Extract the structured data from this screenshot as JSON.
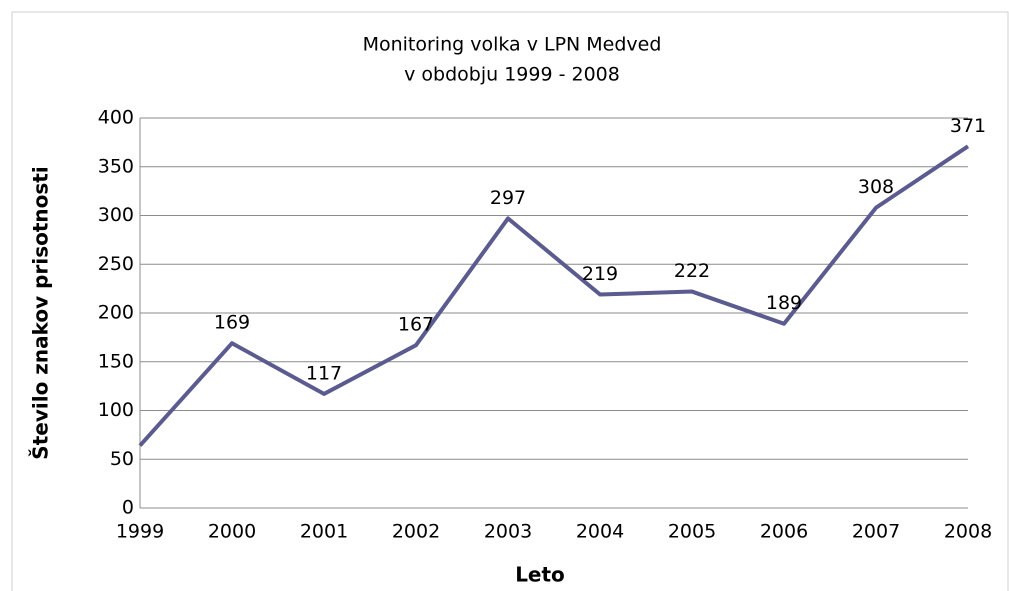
{
  "chart_data": {
    "type": "line",
    "title": [
      "Monitoring volka v LPN Medved",
      "v obdobju 1999 - 2008"
    ],
    "x_label": "Leto",
    "y_label": "Število znakov prisotnosti",
    "categories": [
      "1999",
      "2000",
      "2001",
      "2002",
      "2003",
      "2004",
      "2005",
      "2006",
      "2007",
      "2008"
    ],
    "values": [
      64,
      169,
      117,
      167,
      297,
      219,
      222,
      189,
      308,
      371
    ],
    "value_labels": [
      null,
      "169",
      "117",
      "167",
      "297",
      "219",
      "222",
      "189",
      "308",
      "371"
    ],
    "color": "#5b5b8f",
    "ylim": [
      0,
      400
    ],
    "yticks": [
      0,
      50,
      100,
      150,
      200,
      250,
      300,
      350,
      400
    ],
    "grid": true
  }
}
